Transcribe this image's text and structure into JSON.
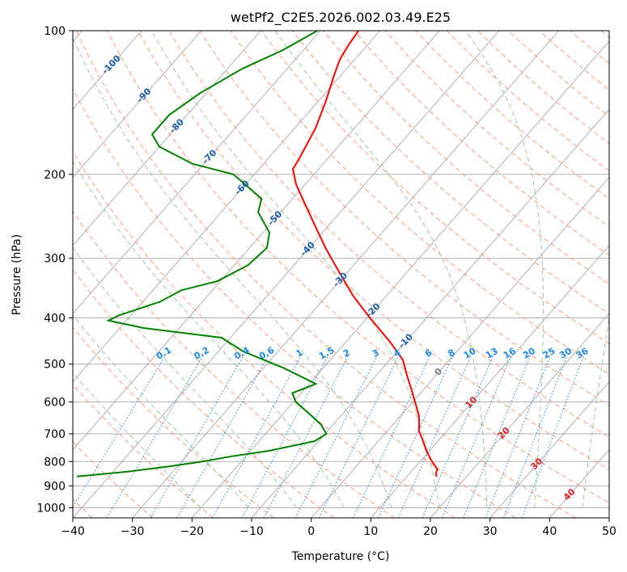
{
  "chart_data": {
    "type": "skew-t",
    "title": "wetPf2_C2E5.2026.002.03.49.E25",
    "xlabel": "Temperature (°C)",
    "ylabel": "Pressure (hPa)",
    "xlim": [
      -40,
      50
    ],
    "ylim": [
      1050,
      100
    ],
    "x_ticks": [
      -40,
      -30,
      -20,
      -10,
      0,
      10,
      20,
      30,
      40,
      50
    ],
    "x_tick_labels": [
      "−40",
      "−30",
      "−20",
      "−10",
      "0",
      "10",
      "20",
      "30",
      "40",
      "50"
    ],
    "p_ticks": [
      100,
      200,
      300,
      400,
      500,
      600,
      700,
      800,
      900,
      1000
    ],
    "p_tick_labels": [
      "100",
      "200",
      "300",
      "400",
      "500",
      "600",
      "700",
      "800",
      "900",
      "1000"
    ],
    "series": [
      {
        "name": "Temperature",
        "color": "#ff0000",
        "points": [
          [
            100,
            -63.6
          ],
          [
            107,
            -63.2
          ],
          [
            115,
            -62.5
          ],
          [
            125,
            -61.0
          ],
          [
            140,
            -58.8
          ],
          [
            160,
            -56.5
          ],
          [
            185,
            -54.8
          ],
          [
            195,
            -54.3
          ],
          [
            210,
            -51.5
          ],
          [
            230,
            -47.3
          ],
          [
            255,
            -42.5
          ],
          [
            285,
            -37.3
          ],
          [
            320,
            -31.5
          ],
          [
            360,
            -25.5
          ],
          [
            400,
            -19.5
          ],
          [
            450,
            -12.5
          ],
          [
            490,
            -7.8
          ],
          [
            530,
            -4.7
          ],
          [
            560,
            -2.4
          ],
          [
            600,
            0.4
          ],
          [
            640,
            3.0
          ],
          [
            660,
            4.0
          ],
          [
            690,
            5.3
          ],
          [
            720,
            7.2
          ],
          [
            760,
            9.5
          ],
          [
            800,
            12.0
          ],
          [
            830,
            14.0
          ],
          [
            850,
            14.5
          ],
          [
            860,
            15.0
          ]
        ]
      },
      {
        "name": "Dewpoint",
        "color": "#008000",
        "points": [
          [
            100,
            -70.5
          ],
          [
            110,
            -73.5
          ],
          [
            120,
            -77.5
          ],
          [
            135,
            -81.0
          ],
          [
            150,
            -83.0
          ],
          [
            165,
            -83.0
          ],
          [
            175,
            -80.0
          ],
          [
            190,
            -72.0
          ],
          [
            200,
            -63.5
          ],
          [
            225,
            -55.2
          ],
          [
            240,
            -53.8
          ],
          [
            265,
            -48.9
          ],
          [
            285,
            -47.1
          ],
          [
            310,
            -47.7
          ],
          [
            335,
            -50.5
          ],
          [
            350,
            -55.2
          ],
          [
            370,
            -57.1
          ],
          [
            395,
            -62.0
          ],
          [
            405,
            -63.0
          ],
          [
            420,
            -56.0
          ],
          [
            440,
            -41.5
          ],
          [
            470,
            -35.9
          ],
          [
            510,
            -26.5
          ],
          [
            550,
            -18.9
          ],
          [
            575,
            -21.5
          ],
          [
            600,
            -19.6
          ],
          [
            640,
            -15.1
          ],
          [
            670,
            -12.0
          ],
          [
            700,
            -9.8
          ],
          [
            725,
            -10.7
          ],
          [
            760,
            -17.0
          ],
          [
            780,
            -22.4
          ],
          [
            800,
            -26.5
          ],
          [
            820,
            -31.7
          ],
          [
            840,
            -37.6
          ],
          [
            860,
            -45.4
          ]
        ]
      }
    ],
    "isotherm_labels": [
      "-100",
      "-90",
      "-80",
      "-70",
      "-60",
      "-50",
      "-40",
      "-30",
      "-20",
      "-10",
      "0",
      "10",
      "20",
      "30",
      "40"
    ],
    "mixing_ratio_labels": [
      "0.1",
      "0.2",
      "0.4",
      "0.6",
      "1",
      "1.5",
      "2",
      "3",
      "4",
      "6",
      "8",
      "10",
      "13",
      "16",
      "20",
      "25",
      "30",
      "36"
    ],
    "colors": {
      "isotherm_label_cold": "#1f5fa8",
      "isotherm_label_zero": "#808080",
      "isotherm_label_warm": "#d62728",
      "mixing_ratio": "#1e88e5",
      "dry_adiabat": "#ff9a7a",
      "moist_adiabat": "#9acd9a",
      "isotherm_grid": "#a8a8a8",
      "pressure_grid": "#b0b0b0"
    }
  }
}
